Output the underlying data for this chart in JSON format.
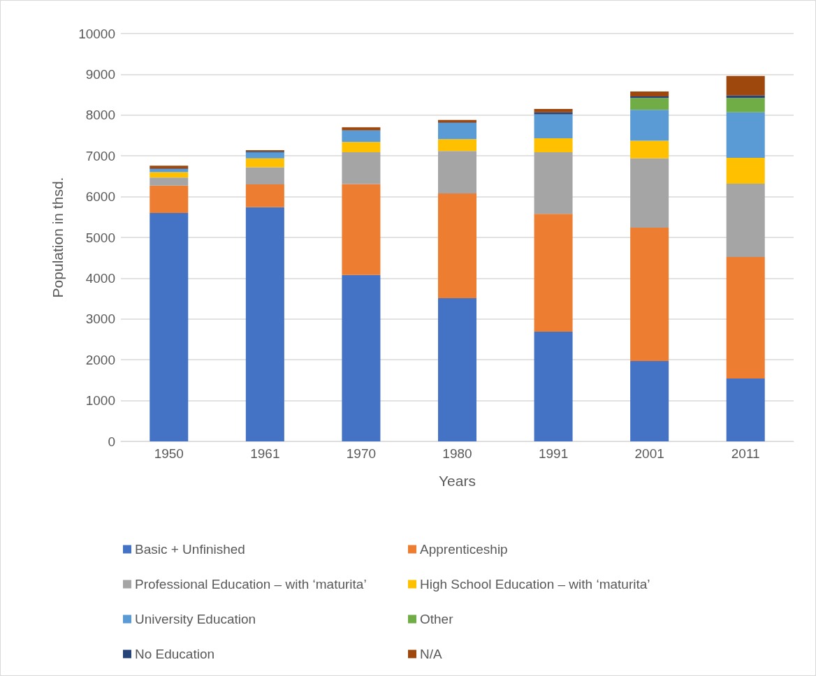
{
  "chart_data": {
    "type": "bar",
    "stacked": true,
    "xlabel": "Years",
    "ylabel": "Population in thsd.",
    "categories": [
      "1950",
      "1961",
      "1970",
      "1980",
      "1991",
      "2001",
      "2011"
    ],
    "series": [
      {
        "name": "Basic + Unfinished",
        "color": "#4472c4",
        "values": [
          5600,
          5740,
          4080,
          3510,
          2690,
          1970,
          1540
        ]
      },
      {
        "name": "Apprenticeship",
        "color": "#ed7d31",
        "values": [
          670,
          560,
          2230,
          2570,
          2890,
          3270,
          2980
        ]
      },
      {
        "name": "Professional Education – with ‘maturita’",
        "color": "#a5a5a5",
        "values": [
          200,
          420,
          780,
          1040,
          1510,
          1700,
          1800
        ]
      },
      {
        "name": "High School Education – with ‘maturita’",
        "color": "#ffc000",
        "values": [
          130,
          220,
          250,
          290,
          340,
          430,
          630
        ]
      },
      {
        "name": "University Education",
        "color": "#5b9bd5",
        "values": [
          80,
          150,
          280,
          400,
          590,
          760,
          1120
        ]
      },
      {
        "name": "Other",
        "color": "#70ad47",
        "values": [
          0,
          0,
          0,
          0,
          0,
          290,
          350
        ]
      },
      {
        "name": "No Education",
        "color": "#264478",
        "values": [
          10,
          20,
          10,
          10,
          50,
          40,
          60
        ]
      },
      {
        "name": "N/A",
        "color": "#9e480e",
        "values": [
          70,
          30,
          70,
          60,
          80,
          120,
          480
        ]
      }
    ],
    "ylim": [
      0,
      10000
    ],
    "yticks": [
      0,
      1000,
      2000,
      3000,
      4000,
      5000,
      6000,
      7000,
      8000,
      9000,
      10000
    ],
    "grid": "y",
    "legend": "bottom"
  }
}
